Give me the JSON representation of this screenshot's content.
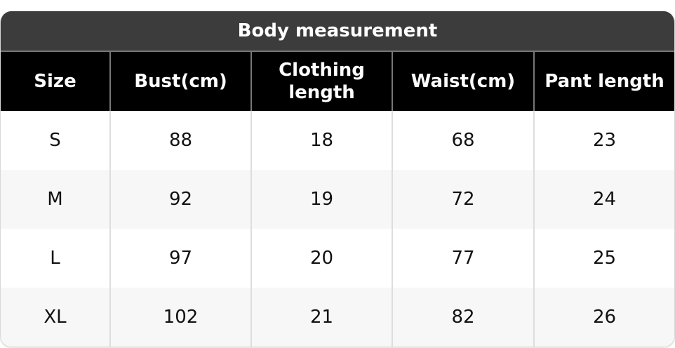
{
  "title": "Body measurement",
  "headers": [
    "Size",
    "Bust(cm)",
    "Clothing length",
    "Waist(cm)",
    "Pant length"
  ],
  "rows": [
    [
      "S",
      "88",
      "18",
      "68",
      "23"
    ],
    [
      "M",
      "92",
      "19",
      "72",
      "24"
    ],
    [
      "L",
      "97",
      "20",
      "77",
      "25"
    ],
    [
      "XL",
      "102",
      "21",
      "82",
      "26"
    ]
  ],
  "colors": {
    "title_bg": "#3c3c3c",
    "header_bg": "#000000",
    "alt_row_bg": "#f7f7f7"
  }
}
